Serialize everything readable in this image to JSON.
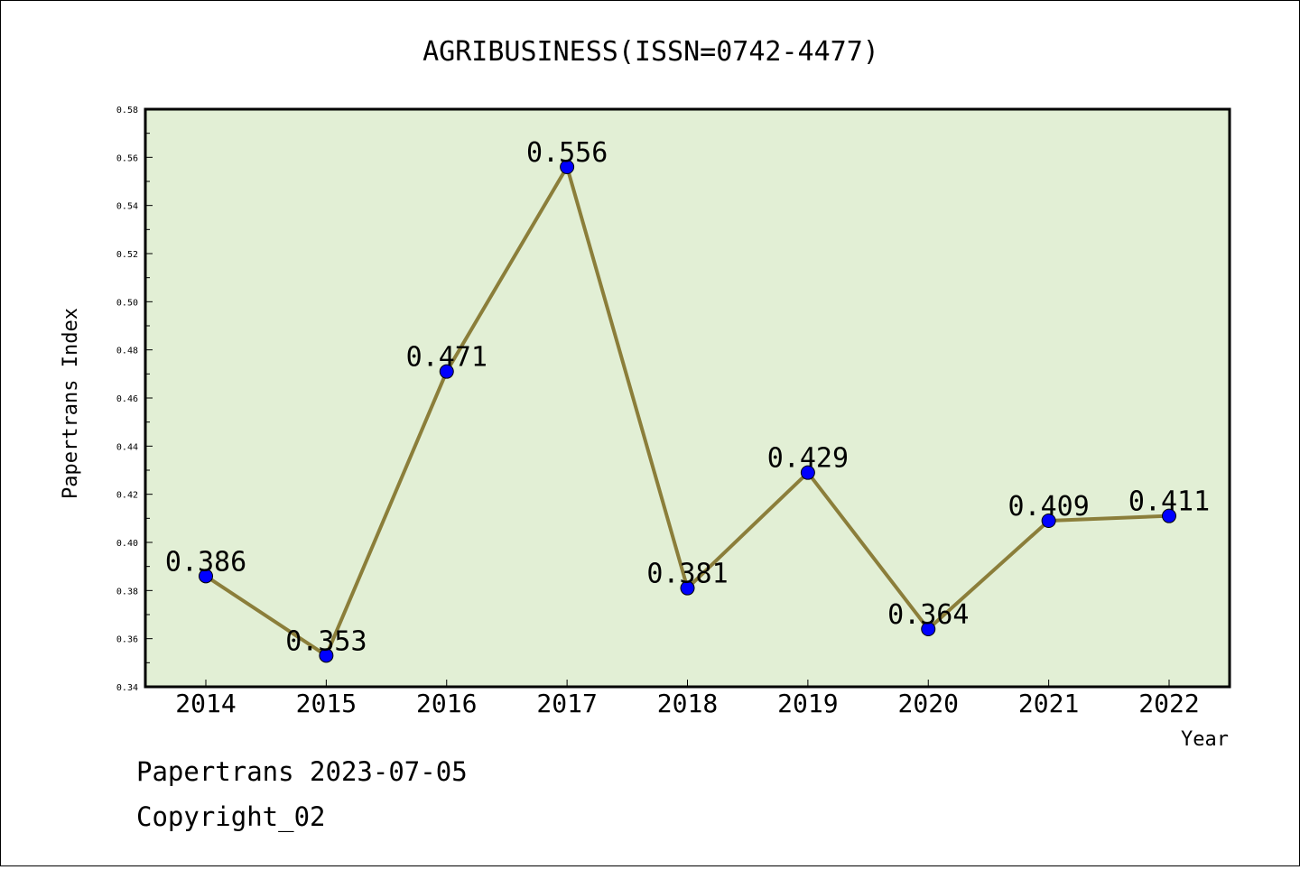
{
  "chart_data": {
    "type": "line",
    "title": "AGRIBUSINESS(ISSN=0742-4477)",
    "xlabel": "Year",
    "ylabel": "Papertrans Index",
    "categories": [
      "2014",
      "2015",
      "2016",
      "2017",
      "2018",
      "2019",
      "2020",
      "2021",
      "2022"
    ],
    "series": [
      {
        "values": [
          0.386,
          0.353,
          0.471,
          0.556,
          0.381,
          0.429,
          0.364,
          0.409,
          0.411
        ],
        "labels": [
          "0.386",
          "0.353",
          "0.471",
          "0.556",
          "0.381",
          "0.429",
          "0.364",
          "0.409",
          "0.411"
        ]
      }
    ],
    "ylim": [
      0.34,
      0.58
    ],
    "yticks": [
      "0.34",
      "0.36",
      "0.38",
      "0.40",
      "0.42",
      "0.44",
      "0.46",
      "0.48",
      "0.50",
      "0.52",
      "0.54",
      "0.56",
      "0.58"
    ],
    "grid": false,
    "legend": "none",
    "colors": {
      "plot_background": "#e2efd5",
      "line": "#8b7e3a",
      "marker": "#0000ff"
    }
  },
  "footer": {
    "line1": "Papertrans 2023-07-05",
    "line2": "Copyright_02"
  }
}
